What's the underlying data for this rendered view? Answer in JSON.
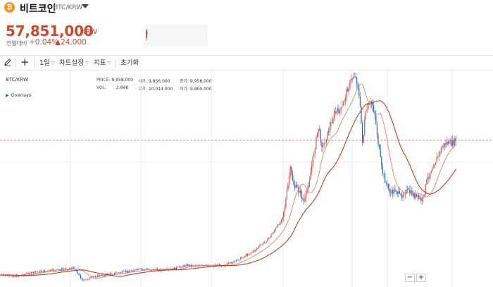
{
  "header": {
    "coin_icon": "₿",
    "coin_name": "비트코인",
    "pair": "BTC/KRW"
  },
  "price": {
    "current": "57,851,000",
    "unit": "KRW",
    "change_label": "전일대비",
    "change_rate": "+0.04%",
    "change_amount": "▲24,000"
  },
  "toolbar": {
    "interval": "1일",
    "chart_settings": "차트설정",
    "indicators": "지표",
    "reset": "초기화"
  },
  "chart": {
    "symbol": "BTC/KRW",
    "overlays_label": "Overlays",
    "stats": {
      "price_label": "PRICE:",
      "price_value": "9,958,000",
      "vol_label": "VOL:",
      "vol_value": "2.84K",
      "open_label": "시가:",
      "open_value": "9,856,000",
      "high_label": "고가:",
      "high_value": "10,014,000",
      "close_label": "종가:",
      "close_value": "9,958,000",
      "low_label": "저가:",
      "low_value": "9,800,000"
    },
    "zoom_out": "−",
    "zoom_in": "+"
  },
  "colors": {
    "accent_red": "#c84a31",
    "candle_up": "#d24f45",
    "candle_down": "#1e63c8",
    "ma_line": "#b4412b",
    "ma_line_2": "#d9826b",
    "current_price_line": "#d76a6a",
    "coin_orange": "#f7931a"
  }
}
